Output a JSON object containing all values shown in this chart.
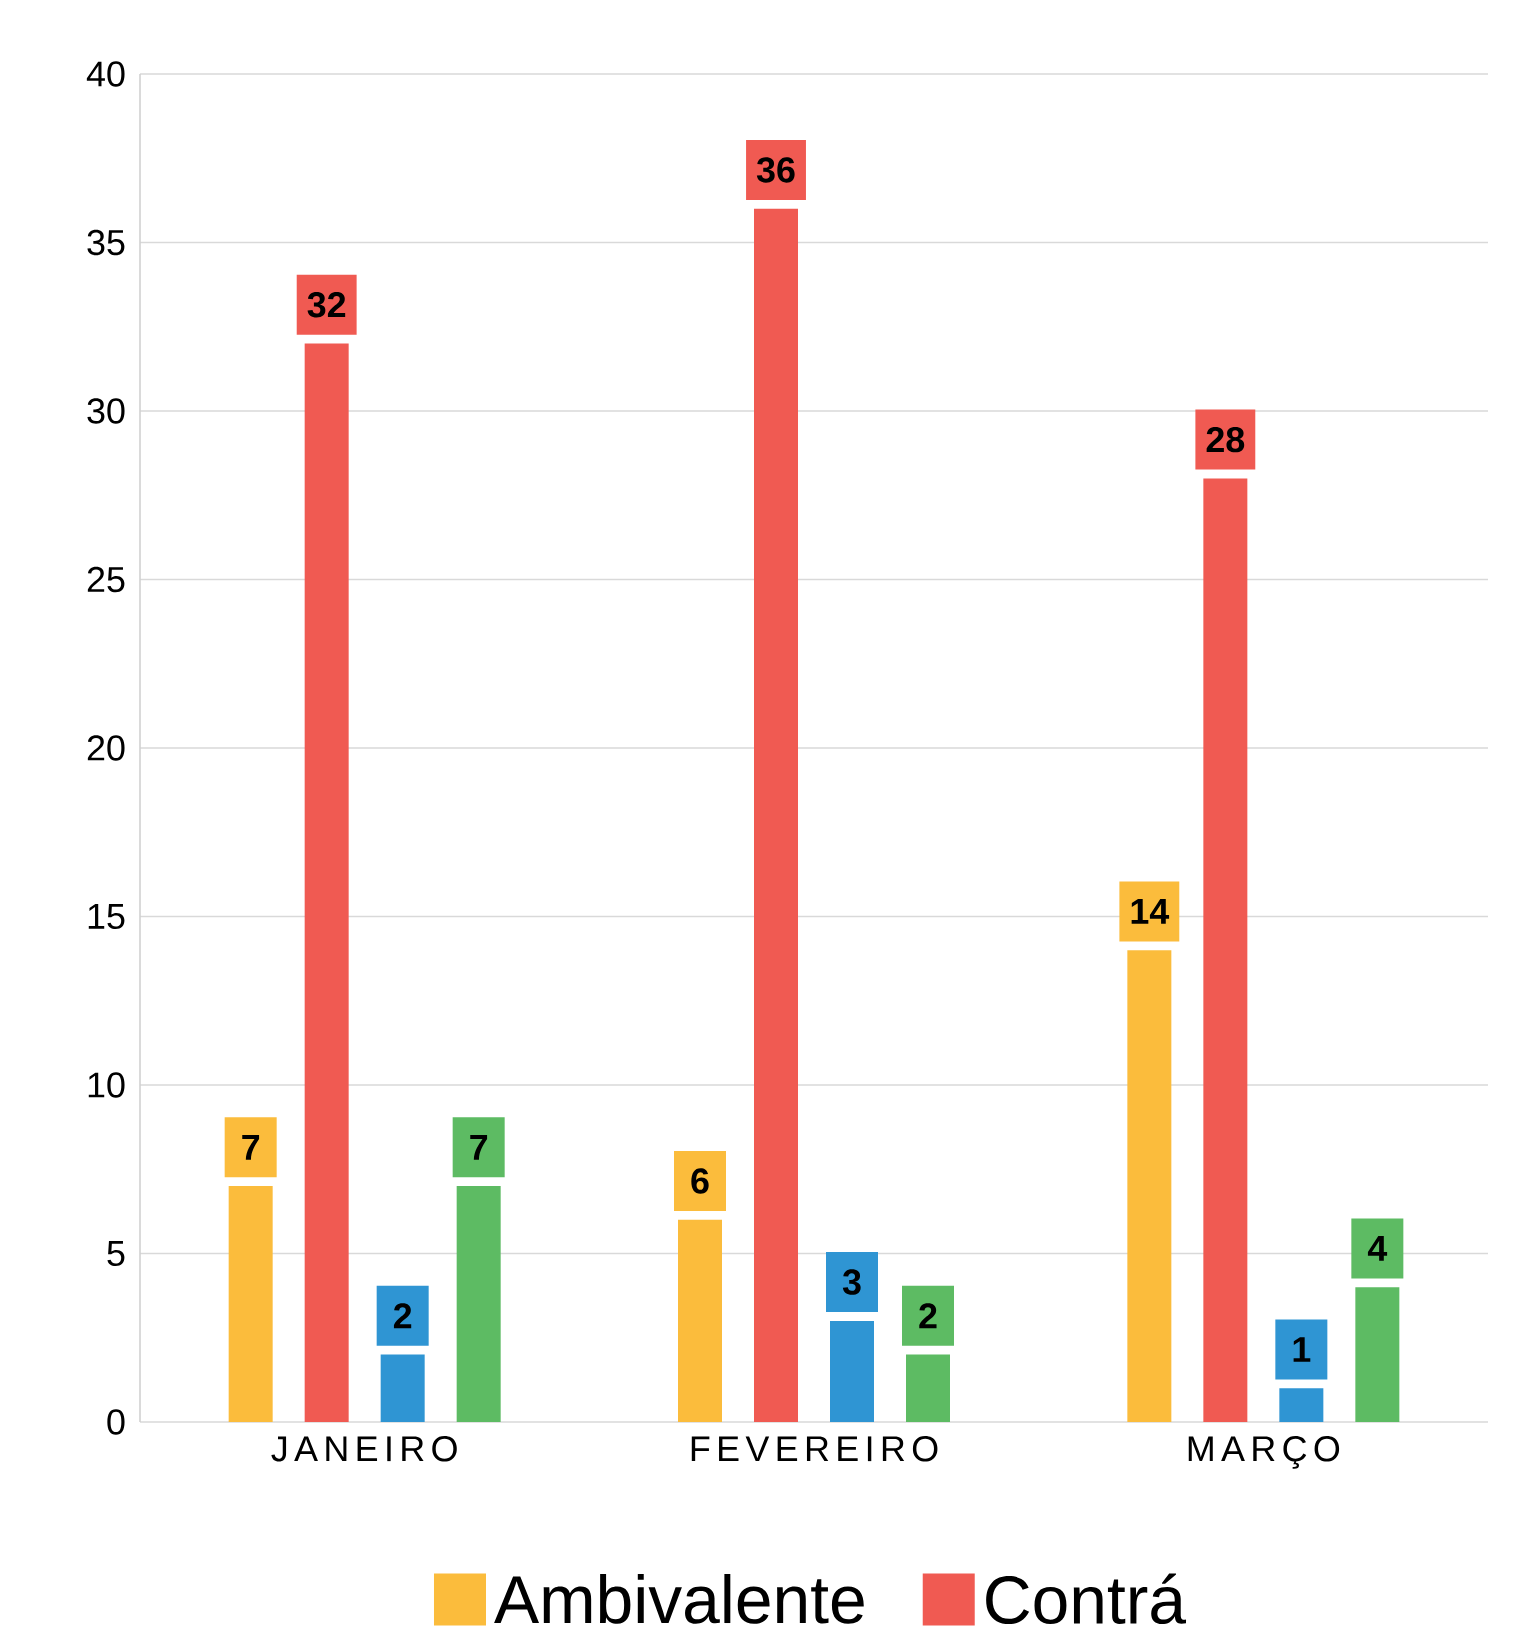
{
  "chart_data": {
    "type": "bar",
    "categories": [
      "JANEIRO",
      "FEVEREIRO",
      "MARÇO"
    ],
    "series": [
      {
        "name": "Ambivalente",
        "color": "#fbbc3c",
        "values": [
          7,
          6,
          14
        ]
      },
      {
        "name": "Contrá",
        "color": "#f05a52",
        "values": [
          32,
          36,
          28
        ]
      },
      {
        "color": "#2f95d3",
        "values": [
          2,
          3,
          1
        ]
      },
      {
        "color": "#5dbb63",
        "values": [
          7,
          2,
          4
        ]
      }
    ],
    "ylim": [
      0,
      40
    ],
    "yticks": [
      0,
      5,
      10,
      15,
      20,
      25,
      30,
      35,
      40
    ],
    "grid": "y",
    "legend": "bottom",
    "data_labels": true
  }
}
